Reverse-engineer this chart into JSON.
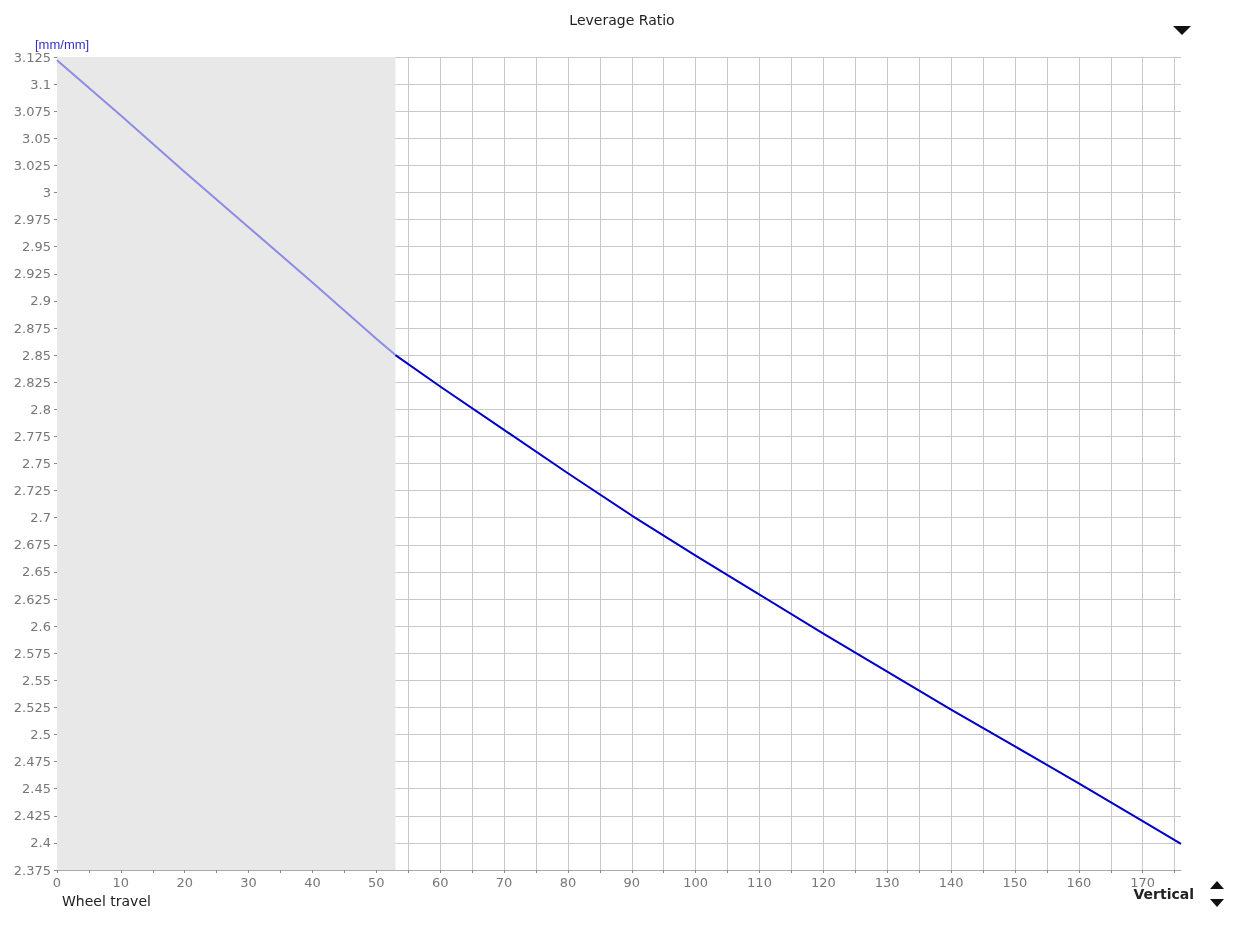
{
  "chart_data": {
    "type": "line",
    "title": "Leverage Ratio",
    "ylabel": "[mm/mm]",
    "annotations": [
      "Wheel travel",
      "Vertical"
    ],
    "series": [
      {
        "color": "#8c8ce6",
        "x": [
          0,
          10,
          20,
          30,
          40,
          50,
          53
        ],
        "values": [
          3.122,
          3.071,
          3.019,
          2.968,
          2.917,
          2.865,
          2.85
        ]
      },
      {
        "color": "#0000c8",
        "x": [
          53,
          60,
          70,
          80,
          90,
          100,
          110,
          120,
          130,
          140,
          150,
          160,
          170,
          176
        ],
        "values": [
          2.85,
          2.821,
          2.781,
          2.741,
          2.702,
          2.665,
          2.629,
          2.593,
          2.558,
          2.523,
          2.489,
          2.455,
          2.42,
          2.399
        ]
      }
    ],
    "bands": [
      {
        "axis": "x",
        "from": 0,
        "to": 53,
        "color": "#e8e8e8"
      }
    ],
    "xlim": [
      0,
      176
    ],
    "xticks": [
      0,
      {
        "value": 5,
        "label": null
      },
      10,
      {
        "value": 15,
        "label": null
      },
      20,
      {
        "value": 25,
        "label": null
      },
      30,
      {
        "value": 35,
        "label": null
      },
      40,
      {
        "value": 45,
        "label": null
      },
      50,
      {
        "value": 55,
        "label": null
      },
      60,
      {
        "value": 65,
        "label": null
      },
      70,
      {
        "value": 75,
        "label": null
      },
      80,
      {
        "value": 85,
        "label": null
      },
      90,
      {
        "value": 95,
        "label": null
      },
      100,
      {
        "value": 105,
        "label": null
      },
      110,
      {
        "value": 115,
        "label": null
      },
      120,
      {
        "value": 125,
        "label": null
      },
      130,
      {
        "value": 135,
        "label": null
      },
      140,
      {
        "value": 145,
        "label": null
      },
      150,
      {
        "value": 155,
        "label": null
      },
      160,
      {
        "value": 165,
        "label": null
      },
      170,
      {
        "value": 175,
        "label": null
      }
    ],
    "ylim": [
      2.375,
      3.125
    ],
    "yticks": [
      2.375,
      2.4,
      2.425,
      2.45,
      2.475,
      2.5,
      2.525,
      2.55,
      2.575,
      2.6,
      2.625,
      2.65,
      2.675,
      2.7,
      2.725,
      2.75,
      2.775,
      2.8,
      2.825,
      2.85,
      2.875,
      2.9,
      2.925,
      2.95,
      2.975,
      3,
      3.025,
      3.05,
      3.075,
      3.1,
      3.125
    ],
    "grid": true,
    "marker": "none",
    "line_style": "solid"
  }
}
